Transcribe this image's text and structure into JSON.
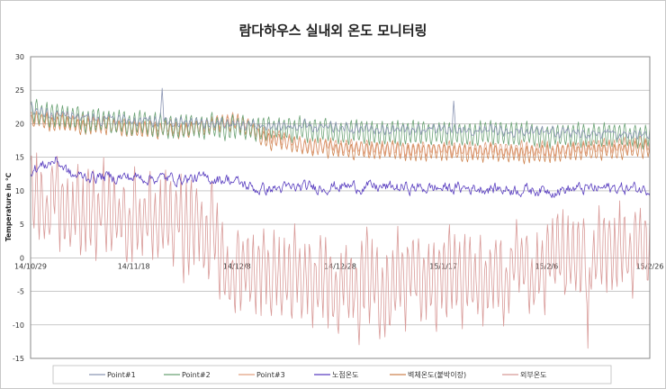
{
  "chart_data": {
    "type": "line",
    "title": "람다하우스 실내외 온도 모니터링",
    "xlabel": "",
    "ylabel": "Temperature in ℃",
    "ylim": [
      -15,
      30
    ],
    "yticks": [
      "30",
      "25",
      "20",
      "15",
      "10",
      "5",
      "0",
      "-5",
      "-10",
      "-15"
    ],
    "xrange_days": [
      0,
      120
    ],
    "xtick_labels": [
      "14/10/29",
      "14/11/18",
      "14/12/8",
      "14/12/28",
      "15/1/17",
      "15/2/6",
      "15/2/26"
    ],
    "grid": true,
    "legend_position": "bottom",
    "series": [
      {
        "name": "Point#1",
        "color": "#8c96b4",
        "keypoints": [
          [
            0,
            22.2
          ],
          [
            6,
            21.4
          ],
          [
            14,
            20.8
          ],
          [
            24,
            20.3
          ],
          [
            34,
            20.1
          ],
          [
            48,
            19.6
          ],
          [
            62,
            19.2
          ],
          [
            76,
            19.1
          ],
          [
            90,
            18.9
          ],
          [
            104,
            18.6
          ],
          [
            120,
            18.5
          ]
        ],
        "noise": 0.45,
        "period": 1.0,
        "amp": 0.4,
        "spikes": [
          [
            25.5,
            25.3
          ],
          [
            82,
            23.4
          ]
        ]
      },
      {
        "name": "Point#2",
        "color": "#6aa274",
        "keypoints": [
          [
            0,
            21.8
          ],
          [
            6,
            21.0
          ],
          [
            14,
            20.4
          ],
          [
            24,
            20.0
          ],
          [
            34,
            19.7
          ],
          [
            48,
            19.2
          ],
          [
            62,
            18.9
          ],
          [
            76,
            18.7
          ],
          [
            90,
            18.5
          ],
          [
            104,
            18.3
          ],
          [
            120,
            18.2
          ]
        ],
        "noise": 0.35,
        "period": 1.0,
        "amp": 1.6
      },
      {
        "name": "Point#3",
        "color": "#e2a080",
        "keypoints": [
          [
            0,
            21.0
          ],
          [
            10,
            20.2
          ],
          [
            20,
            19.5
          ],
          [
            30,
            19.2
          ],
          [
            40,
            20.6
          ],
          [
            46,
            18.2
          ],
          [
            54,
            16.8
          ],
          [
            66,
            16.6
          ],
          [
            76,
            16.2
          ],
          [
            88,
            16.2
          ],
          [
            100,
            16.3
          ],
          [
            110,
            16.6
          ],
          [
            120,
            17.0
          ]
        ],
        "noise": 0.3,
        "period": 1.0,
        "amp": 0.9
      },
      {
        "name": "노점온도",
        "color": "#5a3fc0",
        "keypoints": [
          [
            0,
            13.0
          ],
          [
            5,
            14.6
          ],
          [
            8,
            12.2
          ],
          [
            20,
            12.0
          ],
          [
            30,
            11.8
          ],
          [
            38,
            11.8
          ],
          [
            44,
            10.2
          ],
          [
            60,
            10.7
          ],
          [
            74,
            10.4
          ],
          [
            86,
            10.4
          ],
          [
            100,
            10.1
          ],
          [
            112,
            10.4
          ],
          [
            120,
            10.3
          ]
        ],
        "noise": 0.7,
        "period": 0.0,
        "amp": 0.0
      },
      {
        "name": "벽체온도(붙박이장)",
        "color": "#ce8450",
        "keypoints": [
          [
            0,
            20.5
          ],
          [
            10,
            19.8
          ],
          [
            20,
            19.3
          ],
          [
            30,
            19.0
          ],
          [
            40,
            20.5
          ],
          [
            46,
            17.5
          ],
          [
            54,
            16.5
          ],
          [
            66,
            16.0
          ],
          [
            76,
            15.8
          ],
          [
            88,
            15.6
          ],
          [
            100,
            15.5
          ],
          [
            110,
            15.8
          ],
          [
            120,
            16.3
          ]
        ],
        "noise": 0.3,
        "period": 1.0,
        "amp": 1.1
      },
      {
        "name": "외부온도",
        "color": "#d89a98",
        "keypoints": [
          [
            0,
            9.0
          ],
          [
            10,
            6.5
          ],
          [
            20,
            5.5
          ],
          [
            30,
            5.0
          ],
          [
            36,
            4.5
          ],
          [
            38,
            -1.5
          ],
          [
            46,
            -2.0
          ],
          [
            56,
            -3.5
          ],
          [
            66,
            -3.0
          ],
          [
            76,
            -3.0
          ],
          [
            86,
            -3.5
          ],
          [
            96,
            -2.0
          ],
          [
            104,
            -1.5
          ],
          [
            112,
            1.0
          ],
          [
            120,
            1.0
          ]
        ],
        "noise": 2.5,
        "period": 1.0,
        "amp": 5.0,
        "spikes": [
          [
            108,
            -13.5
          ]
        ]
      }
    ]
  }
}
